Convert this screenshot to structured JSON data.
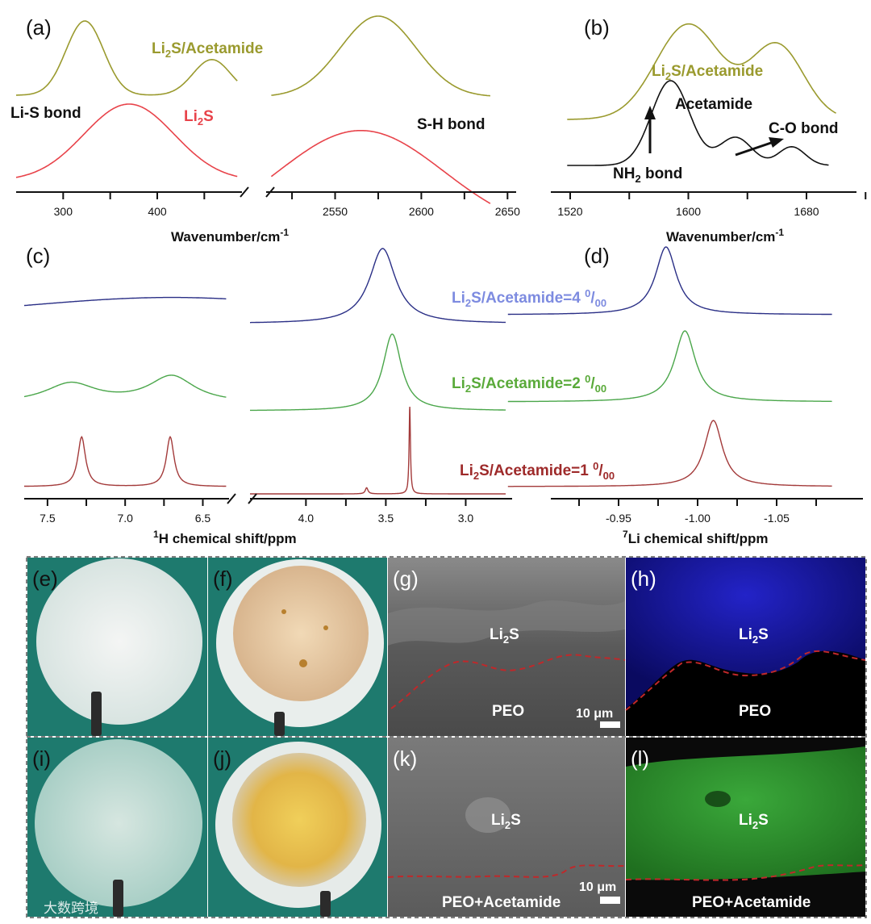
{
  "colors": {
    "olive": "#9a9a2e",
    "red": "#e8434a",
    "black": "#111111",
    "navy": "#2a2f86",
    "green": "#4aa64a",
    "maroon": "#a33a3a",
    "periwinkle": "#7d8be0",
    "dashed_red": "#c0282a",
    "photo_bg": "#1e7a6e",
    "sem_gray": "#6e6e6e",
    "eds_blue": "#1c1ca0",
    "eds_green": "#2d8a2d"
  },
  "panels": {
    "a": "(a)",
    "b": "(b)",
    "c": "(c)",
    "d": "(d)",
    "e": "(e)",
    "f": "(f)",
    "g": "(g)",
    "h": "(h)",
    "i": "(i)",
    "j": "(j)",
    "k": "(k)",
    "l": "(l)"
  },
  "labels": {
    "li2s_acetamide_a": "Li2S/Acetamide",
    "li_s_bond": "Li-S bond",
    "li2s": "Li2S",
    "s_h_bond": "S-H bond",
    "li2s_acetamide_b": "Li2S/Acetamide",
    "acetamide": "Acetamide",
    "c_o_bond": "C-O bond",
    "nh2_bond": "NH2 bond",
    "ratio_4": "Li2S/Acetamide=4 0/00",
    "ratio_2": "Li2S/Acetamide=2 0/00",
    "ratio_1": "Li2S/Acetamide=1 0/00",
    "xlabel_a": "Wavenumber/cm-1",
    "xlabel_b": "Wavenumber/cm-1",
    "xlabel_c": "1H chemical shift/ppm",
    "xlabel_d": "7Li chemical shift/ppm",
    "sem_li2s_g": "Li2S",
    "sem_peo_g": "PEO",
    "scale_g": "10 μm",
    "eds_li2s_h": "Li2S",
    "eds_peo_h": "PEO",
    "sem_li2s_k": "Li2S",
    "sem_peo_k": "PEO+Acetamide",
    "scale_k": "10 μm",
    "eds_li2s_l": "Li2S",
    "eds_peo_l": "PEO+Acetamide",
    "watermark": "大数跨境"
  },
  "chart_data": [
    {
      "panel": "a",
      "type": "line",
      "title": "",
      "xlabel": "Wavenumber/cm-1",
      "ylabel": "",
      "xlim_left": [
        250,
        490
      ],
      "xlim_right": [
        2510,
        2655
      ],
      "ticks_left": [
        300,
        400
      ],
      "ticks_right": [
        2550,
        2600,
        2650
      ],
      "series": [
        {
          "name": "Li2S/Acetamide",
          "peaks": [
            {
              "x": 323,
              "h": 1.0,
              "w": 20
            },
            {
              "x": 458,
              "h": 0.48,
              "w": 20
            },
            {
              "x": 2575,
              "h": 1.0,
              "w": 22
            }
          ]
        },
        {
          "name": "Li2S",
          "peaks": [
            {
              "x": 370,
              "h": 1.0,
              "w": 48
            },
            {
              "x": 2565,
              "h": 0.75,
              "w": 48
            }
          ]
        }
      ]
    },
    {
      "panel": "b",
      "type": "line",
      "title": "",
      "xlabel": "Wavenumber/cm-1",
      "ylabel": "",
      "xlim": [
        1518,
        1725
      ],
      "ticks": [
        1520,
        1600,
        1680
      ],
      "series": [
        {
          "name": "Li2S/Acetamide",
          "peaks": [
            {
              "x": 1600,
              "h": 1.0,
              "w": 22
            },
            {
              "x": 1660,
              "h": 0.78,
              "w": 18
            }
          ]
        },
        {
          "name": "Acetamide",
          "peaks": [
            {
              "x": 1588,
              "h": 1.0,
              "w": 13
            },
            {
              "x": 1632,
              "h": 0.33,
              "w": 11
            },
            {
              "x": 1670,
              "h": 0.22,
              "w": 9
            }
          ]
        }
      ]
    },
    {
      "panel": "c",
      "type": "line",
      "title": "",
      "xlabel": "1H chemical shift/ppm",
      "ylabel": "",
      "xlim_left": [
        7.65,
        6.3
      ],
      "xlim_right": [
        4.35,
        2.75
      ],
      "ticks_left": [
        7.5,
        7.0,
        6.5
      ],
      "ticks_right": [
        4.0,
        3.5,
        3.0
      ],
      "series": [
        {
          "name": "Li2S/Acetamide=4 0/00",
          "peaks": [
            {
              "x": 3.52,
              "h": 1.0,
              "w": 0.1
            },
            {
              "x": 6.7,
              "h": 0.45,
              "w": 0.9
            }
          ]
        },
        {
          "name": "Li2S/Acetamide=2 0/00",
          "peaks": [
            {
              "x": 3.46,
              "h": 1.0,
              "w": 0.07
            },
            {
              "x": 7.35,
              "h": 0.4,
              "w": 0.2
            },
            {
              "x": 6.7,
              "h": 0.55,
              "w": 0.18
            }
          ]
        },
        {
          "name": "Li2S/Acetamide=1 0/00",
          "peaks": [
            {
              "x": 3.35,
              "h": 1.0,
              "w": 0.005
            },
            {
              "x": 7.28,
              "h": 0.75,
              "w": 0.03
            },
            {
              "x": 6.71,
              "h": 0.75,
              "w": 0.03
            },
            {
              "x": 3.62,
              "h": 0.07,
              "w": 0.01
            }
          ]
        }
      ]
    },
    {
      "panel": "d",
      "type": "line",
      "title": "",
      "xlabel": "7Li chemical shift/ppm",
      "ylabel": "",
      "xlim": [
        -0.88,
        -1.085
      ],
      "ticks": [
        -0.95,
        -1.0,
        -1.05
      ],
      "series": [
        {
          "name": "Li2S/Acetamide=4 0/00",
          "peaks": [
            {
              "x": -0.98,
              "h": 1.0,
              "w": 0.008
            }
          ]
        },
        {
          "name": "Li2S/Acetamide=2 0/00",
          "peaks": [
            {
              "x": -0.992,
              "h": 1.0,
              "w": 0.008
            }
          ]
        },
        {
          "name": "Li2S/Acetamide=1 0/00",
          "peaks": [
            {
              "x": -1.01,
              "h": 1.0,
              "w": 0.007
            }
          ]
        }
      ]
    }
  ]
}
